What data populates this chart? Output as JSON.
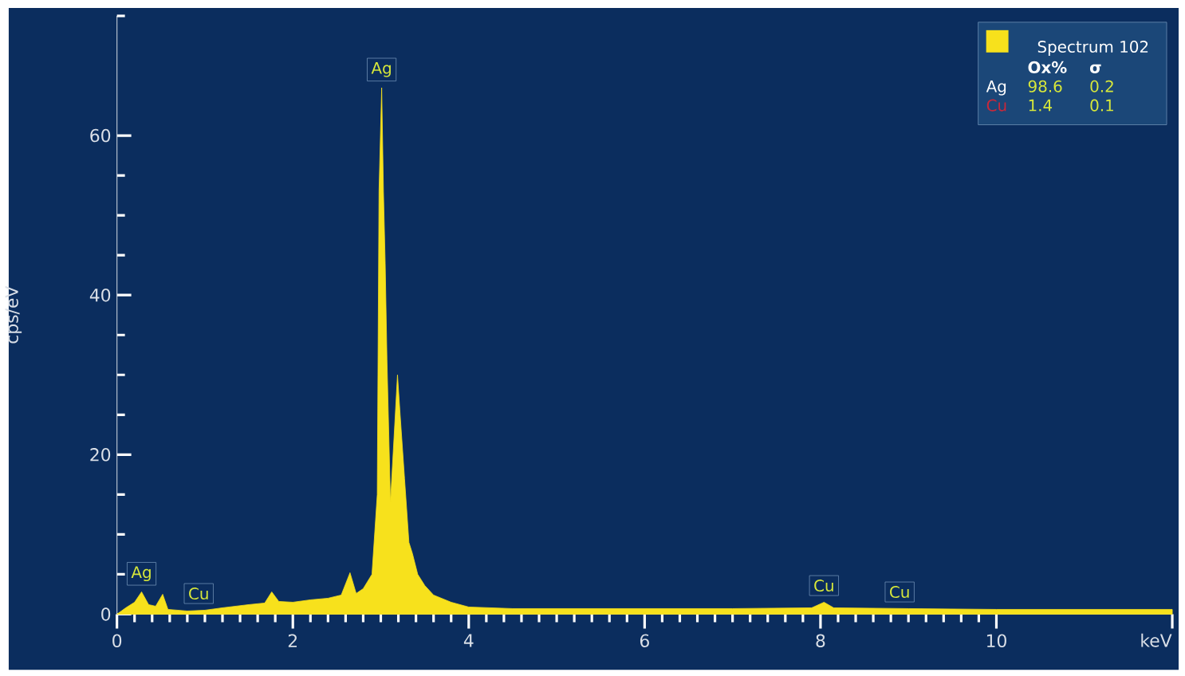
{
  "chart_data": {
    "type": "area",
    "xlabel": "keV",
    "ylabel": "cps/eV",
    "xlim": [
      0,
      12
    ],
    "ylim": [
      0,
      75
    ],
    "xticks": [
      0,
      2,
      4,
      6,
      8,
      10,
      {
        "value": 12,
        "label": null
      }
    ],
    "yticks": [
      0,
      20,
      40,
      60,
      {
        "value": 75,
        "label": null
      }
    ],
    "legend": "top right",
    "grid": false,
    "series": [
      {
        "name": "Spectrum 102",
        "color": "#f7e11c",
        "x": [
          0,
          0.1,
          0.2,
          0.28,
          0.36,
          0.44,
          0.52,
          0.58,
          0.8,
          1.0,
          1.2,
          1.5,
          1.68,
          1.76,
          1.84,
          2.0,
          2.2,
          2.4,
          2.55,
          2.65,
          2.72,
          2.8,
          2.9,
          2.96,
          2.98,
          3.01,
          3.03,
          3.05,
          3.07,
          3.11,
          3.15,
          3.19,
          3.22,
          3.27,
          3.32,
          3.36,
          3.42,
          3.5,
          3.6,
          3.8,
          4.0,
          4.5,
          5,
          6,
          7,
          7.9,
          8.04,
          8.15,
          9,
          10,
          11,
          12
        ],
        "values": [
          0,
          0.8,
          1.5,
          2.8,
          1.2,
          1.0,
          2.5,
          0.6,
          0.4,
          0.5,
          0.8,
          1.2,
          1.4,
          2.8,
          1.6,
          1.5,
          1.8,
          2.0,
          2.4,
          5.2,
          2.6,
          3.2,
          5,
          15,
          53,
          66,
          53,
          44,
          32,
          14,
          22,
          30,
          25,
          17,
          9,
          7.6,
          5,
          3.6,
          2.4,
          1.5,
          0.9,
          0.7,
          0.7,
          0.7,
          0.7,
          0.8,
          1.5,
          0.8,
          0.7,
          0.6,
          0.6,
          0.6
        ]
      }
    ],
    "annotations": [
      {
        "text": "Ag",
        "x": 3.01,
        "y": 66
      },
      {
        "text": "Ag",
        "x": 0.28,
        "y": 2.8
      },
      {
        "text": "Cu",
        "x": 0.93,
        "y": 0.5
      },
      {
        "text": "Cu",
        "x": 8.04,
        "y": 1.5
      },
      {
        "text": "Cu",
        "x": 8.9,
        "y": 0.7
      },
      "Ox%",
      "σ",
      "Ag",
      "98.6",
      "0.2",
      "Cu",
      "1.4",
      "0.1"
    ]
  }
}
